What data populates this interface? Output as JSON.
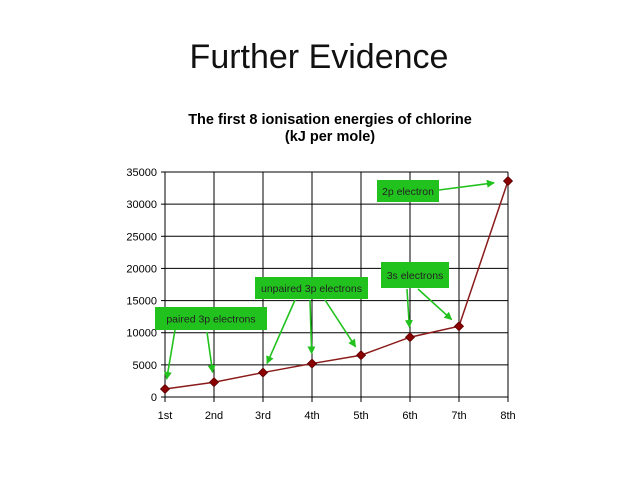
{
  "slide": {
    "title": "Further Evidence"
  },
  "chart_data": {
    "type": "line",
    "title": "The first 8 ionisation energies of chlorine",
    "subtitle": "(kJ per mole)",
    "xlabel": "",
    "ylabel": "",
    "categories": [
      "1st",
      "2nd",
      "3rd",
      "4th",
      "5th",
      "6th",
      "7th",
      "8th"
    ],
    "series": [
      {
        "values": [
          1250,
          2300,
          3800,
          5200,
          6500,
          9300,
          11000,
          33600
        ]
      }
    ],
    "ylim": [
      0,
      35000
    ],
    "yticks": [
      0,
      5000,
      10000,
      15000,
      20000,
      25000,
      30000,
      35000
    ],
    "grid": true,
    "colors": {
      "line": "#8b1a1a",
      "marker": "#8b0000",
      "annotation_box": "#22c21e",
      "arrow": "#22c21e"
    },
    "annotations": [
      {
        "text": "paired 3p electrons",
        "targets": [
          0,
          1
        ]
      },
      {
        "text": "unpaired 3p electrons",
        "targets": [
          2,
          3,
          4
        ]
      },
      {
        "text": "3s electrons",
        "targets": [
          5,
          6
        ]
      },
      {
        "text": "2p electron",
        "targets": [
          7
        ]
      }
    ]
  }
}
